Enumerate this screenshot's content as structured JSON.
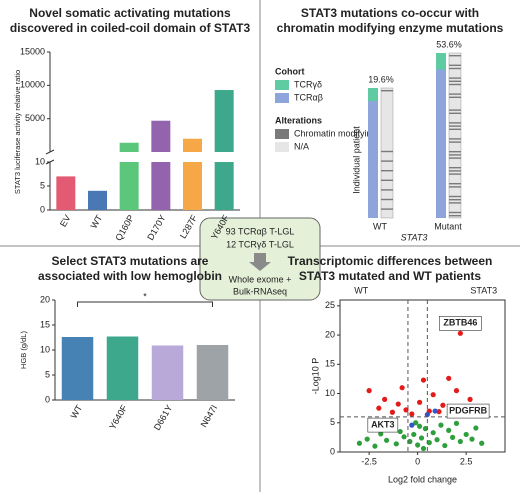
{
  "chart_data": [
    {
      "type": "bar-broken",
      "title": [
        "Novel somatic activating mutations",
        "discovered in coiled-coil domain of STAT3"
      ],
      "ylabel": "STAT3 luciferase activity relative ratio",
      "categories": [
        "EV",
        "WT",
        "Q160P",
        "D170Y",
        "L287F",
        "Y640F"
      ],
      "values": [
        7,
        4,
        1400,
        4700,
        2000,
        9300
      ],
      "colors": [
        "#e35b73",
        "#4a78b5",
        "#5cc77a",
        "#9463ae",
        "#f5a845",
        "#3ea88c"
      ],
      "ylim_lower": [
        0,
        10
      ],
      "yticks_lower": [
        0,
        5,
        10
      ],
      "ylim_upper": [
        10,
        15000
      ],
      "yticks_upper": [
        5000,
        10000,
        15000
      ]
    },
    {
      "type": "tile",
      "title": [
        "STAT3 mutations co-occur with",
        "chromatin modifying enzyme mutations"
      ],
      "ylabel": "Individual patient",
      "xlabel": "STAT3",
      "categories": [
        "WT",
        "Mutant"
      ],
      "values": [
        19.6,
        53.6
      ],
      "value_labels": [
        "19.6%",
        "53.6%"
      ],
      "legend": [
        {
          "title": "Cohort",
          "entries": [
            {
              "name": "TCRγδ",
              "color": "#5fcba2"
            },
            {
              "name": "TCRαβ",
              "color": "#8ea5dc"
            }
          ]
        },
        {
          "title": "Alterations",
          "entries": [
            {
              "name": "Chromatin modifying",
              "color": "#7a7a7a"
            },
            {
              "name": "N/A",
              "color": "#e6e6e6"
            }
          ]
        }
      ]
    },
    {
      "type": "bar",
      "title": [
        "Select STAT3 mutations are",
        "associated with low hemoglobin"
      ],
      "ylabel": "HGB (g/dL)",
      "categories": [
        "WT",
        "Y640F",
        "D661Y",
        "N647I"
      ],
      "values": [
        12.6,
        12.7,
        10.9,
        11.0
      ],
      "colors": [
        "#4682b4",
        "#3ea88c",
        "#b8a9d9",
        "#9ea3a8"
      ],
      "ylim": [
        0,
        20
      ],
      "yticks": [
        0,
        5,
        10,
        15,
        20
      ],
      "significance_label": "*"
    },
    {
      "type": "scatter",
      "title": [
        "Transcriptomic differences between",
        "STAT3 mutated and WT patients"
      ],
      "group_labels": [
        "WT",
        "STAT3"
      ],
      "xlabel": "Log2 fold change",
      "ylabel": "-Log10 P",
      "xlim": [
        -4,
        4.5
      ],
      "xticks": [
        -2.5,
        0,
        2.5
      ],
      "ylim": [
        0,
        26
      ],
      "yticks": [
        0,
        5,
        10,
        15,
        20,
        25
      ],
      "thresholds": {
        "y": 6,
        "x": [
          -0.5,
          0.5
        ]
      },
      "series": [
        {
          "color": "#2f9e3c",
          "x": [
            -3.0,
            -2.6,
            -2.2,
            -1.9,
            -1.6,
            -1.3,
            -1.1,
            -0.9,
            -0.7,
            -0.4,
            -0.2,
            0,
            0.2,
            0.4,
            0.6,
            0.8,
            1.0,
            1.2,
            1.4,
            1.6,
            1.8,
            2.0,
            2.2,
            2.5,
            2.8,
            3.0,
            3.3,
            -0.1,
            0.1,
            0.3
          ],
          "values": [
            1.5,
            2.2,
            1.0,
            3.1,
            2.0,
            4.2,
            1.4,
            3.5,
            2.6,
            1.8,
            3.0,
            1.2,
            2.4,
            4.0,
            1.6,
            3.3,
            2.1,
            4.6,
            1.1,
            3.7,
            2.5,
            4.9,
            1.8,
            3.0,
            2.2,
            4.1,
            1.5,
            5.0,
            4.4,
            0.6
          ]
        },
        {
          "color": "#e31b1b",
          "x": [
            -2.5,
            -2.0,
            -1.7,
            -1.3,
            -1.0,
            -0.8,
            -0.6,
            -0.3,
            0.1,
            0.3,
            0.6,
            0.8,
            1.1,
            1.3,
            1.6,
            1.8,
            2.0,
            2.5,
            2.7,
            2.2
          ],
          "values": [
            10.5,
            7.5,
            9.0,
            6.8,
            8.2,
            11.0,
            7.2,
            6.5,
            8.5,
            12.3,
            7.0,
            9.8,
            6.9,
            8.0,
            12.6,
            7.3,
            10.5,
            6.8,
            9.0,
            20.3
          ]
        },
        {
          "color": "#3355cc",
          "x": [
            0.9,
            0.5,
            -0.3
          ],
          "values": [
            7.0,
            6.4,
            4.6
          ]
        }
      ],
      "annotations": [
        {
          "text": "ZBTB46",
          "x": 2.2,
          "y": 20.3
        },
        {
          "text": "PDGFRB",
          "x": 0.9,
          "y": 7.0
        },
        {
          "text": "AKT3",
          "x": -0.3,
          "y": 4.6
        }
      ]
    }
  ],
  "center": {
    "lines": [
      "93 TCRαβ T-LGL",
      "12 TCRγδ T-LGL",
      "Whole exome +",
      "Bulk-RNAseq"
    ]
  }
}
